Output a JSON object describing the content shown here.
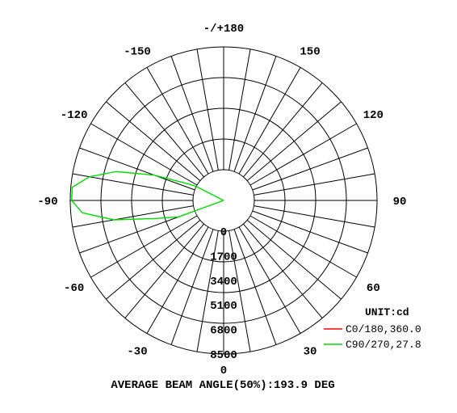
{
  "chart_data": {
    "type": "polar",
    "unit_label": "UNIT:cd",
    "angle_labels": [
      {
        "deg": 180,
        "text": "-/+180"
      },
      {
        "deg": -150,
        "text": "-150"
      },
      {
        "deg": 150,
        "text": "150"
      },
      {
        "deg": -120,
        "text": "-120"
      },
      {
        "deg": 120,
        "text": "120"
      },
      {
        "deg": -90,
        "text": "-90"
      },
      {
        "deg": 90,
        "text": "90"
      },
      {
        "deg": -60,
        "text": "-60"
      },
      {
        "deg": 60,
        "text": "60"
      },
      {
        "deg": -30,
        "text": "-30"
      },
      {
        "deg": 30,
        "text": "30"
      },
      {
        "deg": 0,
        "text": "0"
      }
    ],
    "radial_ticks": [
      0,
      1700,
      3400,
      5100,
      6800,
      8500
    ],
    "rmax": 8500,
    "series": [
      {
        "name": "C0/180,360.0",
        "color": "#ff0000",
        "points": []
      },
      {
        "name": "C90/270,27.8",
        "color": "#00dd00",
        "points": [
          [
            -70,
            1200
          ],
          [
            -75,
            2700
          ],
          [
            -80,
            5600
          ],
          [
            -85,
            7700
          ],
          [
            -90,
            8400
          ],
          [
            -95,
            8400
          ],
          [
            -100,
            7300
          ],
          [
            -105,
            5600
          ],
          [
            -110,
            3000
          ],
          [
            -115,
            600
          ],
          [
            -117,
            0
          ]
        ]
      }
    ],
    "beam_angle_text": "AVERAGE BEAM ANGLE(50%):193.9 DEG"
  }
}
